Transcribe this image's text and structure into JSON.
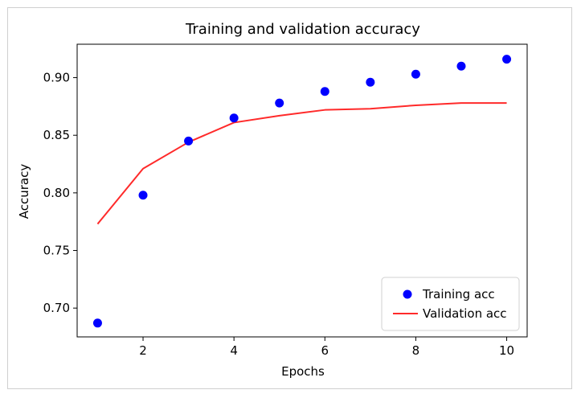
{
  "chart_data": {
    "type": "scatter",
    "title": "Training and validation accuracy",
    "xlabel": "Epochs",
    "ylabel": "Accuracy",
    "xlim": [
      0.55,
      10.45
    ],
    "ylim": [
      0.675,
      0.929
    ],
    "x_ticks": [
      2,
      4,
      6,
      8,
      10
    ],
    "y_ticks": [
      0.7,
      0.75,
      0.8,
      0.85,
      0.9
    ],
    "x_tick_labels": [
      "2",
      "4",
      "6",
      "8",
      "10"
    ],
    "y_tick_labels": [
      "0.70",
      "0.75",
      "0.80",
      "0.85",
      "0.90"
    ],
    "grid": false,
    "legend_position": "lower-right",
    "series": [
      {
        "name": "Training acc",
        "kind": "scatter",
        "color": "#0000ff",
        "x": [
          1,
          2,
          3,
          4,
          5,
          6,
          7,
          8,
          9,
          10
        ],
        "y": [
          0.687,
          0.798,
          0.845,
          0.865,
          0.878,
          0.888,
          0.896,
          0.903,
          0.91,
          0.916
        ]
      },
      {
        "name": "Validation acc",
        "kind": "line",
        "color": "#ff2a2a",
        "x": [
          1,
          2,
          3,
          4,
          5,
          6,
          7,
          8,
          9,
          10
        ],
        "y": [
          0.773,
          0.821,
          0.844,
          0.861,
          0.867,
          0.872,
          0.873,
          0.876,
          0.878,
          0.878
        ]
      }
    ]
  }
}
